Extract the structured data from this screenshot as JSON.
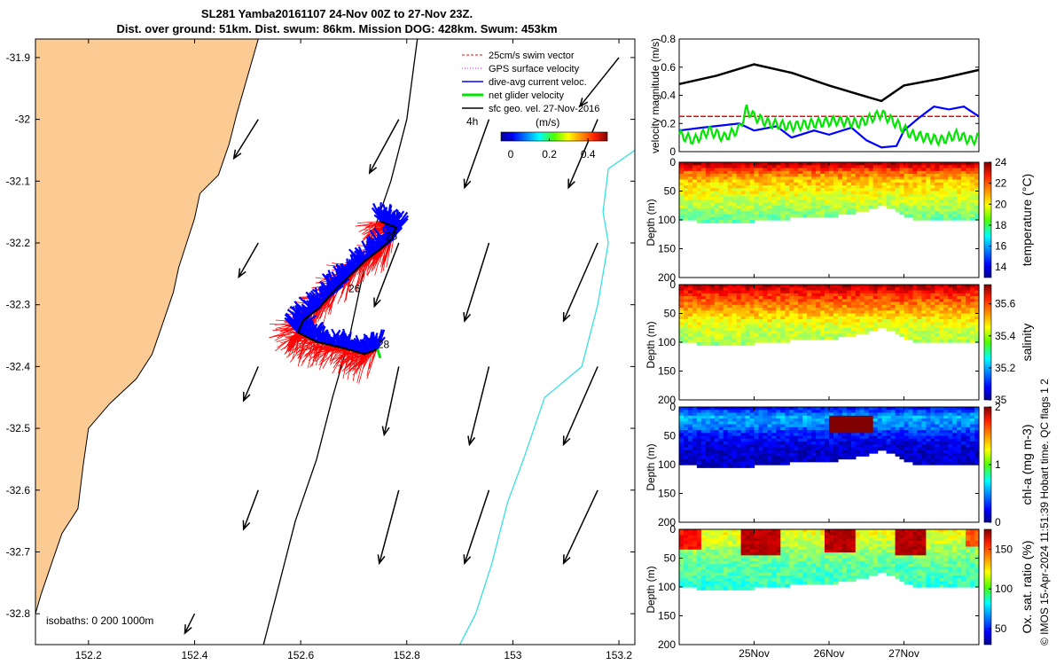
{
  "title_line1": "SL281 Yamba20161107 24-Nov 00Z to 27-Nov 23Z.",
  "title_line2": "Dist. over ground: 51km. Dist. swum: 86km. Mission DOG: 428km. Swum: 453km",
  "credit": "© IMOS 15-Apr-2024 11:51:39 Hobart time. QC flags 1  2",
  "colors": {
    "land": "#fbcb93",
    "swim_vector": "#ff0000",
    "gps_velocity": "#ff00ff",
    "dive_avg": "#0000ff",
    "net_velocity": "#00e600",
    "sfc_geo": "#000000",
    "isobath_shallow": "#000000",
    "isobath_1000": "#39e0e0"
  },
  "chart_data": [
    {
      "type": "map",
      "name": "glider-track-map",
      "xlim": [
        152.1,
        153.23
      ],
      "ylim": [
        -32.85,
        -31.87
      ],
      "xticks": [
        152.2,
        152.4,
        152.6,
        152.8,
        153,
        153.2
      ],
      "xtick_labels": [
        "152.2",
        "152.4",
        "152.6",
        "152.8",
        "153",
        "153.2"
      ],
      "yticks": [
        -31.9,
        -32,
        -32.1,
        -32.2,
        -32.3,
        -32.4,
        -32.5,
        -32.6,
        -32.7,
        -32.8
      ],
      "ytick_labels": [
        "-31.9",
        "-32",
        "-32.1",
        "-32.2",
        "-32.3",
        "-32.4",
        "-32.5",
        "-32.6",
        "-32.7",
        "-32.8"
      ],
      "legend": [
        {
          "label": "25cm/s swim vector",
          "color_key": "swim_vector",
          "style": "dashed"
        },
        {
          "label": "GPS surface velocity",
          "color_key": "gps_velocity",
          "style": "dotted"
        },
        {
          "label": "dive-avg current veloc.",
          "color_key": "dive_avg",
          "style": "solid"
        },
        {
          "label": "net glider velocity",
          "color_key": "net_velocity",
          "style": "thick"
        },
        {
          "label": "sfc geo. vel. 27-Nov-2016",
          "color_key": "sfc_geo",
          "style": "solid"
        }
      ],
      "scale_label": "4h",
      "colorbar_label": "(m/s)",
      "colorbar_ticks": [
        0,
        0.2,
        0.4
      ],
      "colorbar_range": [
        -0.05,
        0.5
      ],
      "isobaths_label": "isobaths: 0   200  1000m",
      "day_labels": [
        {
          "text": "25",
          "lon": 152.76,
          "lat": -32.195
        },
        {
          "text": "26",
          "lon": 152.69,
          "lat": -32.28
        },
        {
          "text": "28",
          "lon": 152.745,
          "lat": -32.37
        }
      ],
      "track": [
        [
          152.75,
          -32.165
        ],
        [
          152.78,
          -32.175
        ],
        [
          152.77,
          -32.195
        ],
        [
          152.75,
          -32.21
        ],
        [
          152.72,
          -32.23
        ],
        [
          152.69,
          -32.255
        ],
        [
          152.66,
          -32.28
        ],
        [
          152.635,
          -32.305
        ],
        [
          152.605,
          -32.325
        ],
        [
          152.595,
          -32.345
        ],
        [
          152.63,
          -32.36
        ],
        [
          152.68,
          -32.37
        ],
        [
          152.72,
          -32.38
        ],
        [
          152.745,
          -32.372
        ]
      ],
      "coastline": [
        [
          152.52,
          -31.87
        ],
        [
          152.5,
          -31.93
        ],
        [
          152.48,
          -31.99
        ],
        [
          152.465,
          -32.04
        ],
        [
          152.445,
          -32.09
        ],
        [
          152.41,
          -32.12
        ],
        [
          152.4,
          -32.16
        ],
        [
          152.385,
          -32.2
        ],
        [
          152.37,
          -32.24
        ],
        [
          152.36,
          -32.28
        ],
        [
          152.34,
          -32.33
        ],
        [
          152.32,
          -32.38
        ],
        [
          152.29,
          -32.42
        ],
        [
          152.24,
          -32.46
        ],
        [
          152.2,
          -32.5
        ],
        [
          152.19,
          -32.56
        ],
        [
          152.18,
          -32.63
        ],
        [
          152.15,
          -32.67
        ],
        [
          152.13,
          -32.72
        ],
        [
          152.11,
          -32.77
        ],
        [
          152.1,
          -32.8
        ]
      ],
      "geo_arrows": [
        {
          "lon": 152.52,
          "lat": -32.0,
          "u": -0.05,
          "v": -0.08
        },
        {
          "lon": 152.785,
          "lat": -32.0,
          "u": -0.06,
          "v": -0.11
        },
        {
          "lon": 152.955,
          "lat": -32.0,
          "u": -0.05,
          "v": -0.14
        },
        {
          "lon": 153.16,
          "lat": -32.0,
          "u": -0.06,
          "v": -0.14
        },
        {
          "lon": 153.2,
          "lat": -31.9,
          "u": -0.08,
          "v": -0.1
        },
        {
          "lon": 152.52,
          "lat": -32.2,
          "u": -0.04,
          "v": -0.07
        },
        {
          "lon": 152.785,
          "lat": -32.2,
          "u": -0.05,
          "v": -0.13
        },
        {
          "lon": 152.955,
          "lat": -32.2,
          "u": -0.05,
          "v": -0.16
        },
        {
          "lon": 153.16,
          "lat": -32.2,
          "u": -0.07,
          "v": -0.16
        },
        {
          "lon": 152.52,
          "lat": -32.4,
          "u": -0.03,
          "v": -0.07
        },
        {
          "lon": 152.785,
          "lat": -32.4,
          "u": -0.03,
          "v": -0.14
        },
        {
          "lon": 152.955,
          "lat": -32.4,
          "u": -0.04,
          "v": -0.16
        },
        {
          "lon": 153.16,
          "lat": -32.4,
          "u": -0.07,
          "v": -0.16
        },
        {
          "lon": 152.52,
          "lat": -32.6,
          "u": -0.03,
          "v": -0.08
        },
        {
          "lon": 152.785,
          "lat": -32.6,
          "u": -0.04,
          "v": -0.15
        },
        {
          "lon": 152.955,
          "lat": -32.6,
          "u": -0.05,
          "v": -0.15
        },
        {
          "lon": 153.16,
          "lat": -32.6,
          "u": -0.07,
          "v": -0.15
        },
        {
          "lon": 152.4,
          "lat": -32.8,
          "u": -0.02,
          "v": -0.04
        }
      ],
      "isobath_200": [
        [
          152.82,
          -31.87
        ],
        [
          152.8,
          -32.0
        ],
        [
          152.77,
          -32.1
        ],
        [
          152.73,
          -32.2
        ],
        [
          152.71,
          -32.28
        ],
        [
          152.69,
          -32.36
        ],
        [
          152.66,
          -32.45
        ],
        [
          152.63,
          -32.55
        ],
        [
          152.59,
          -32.65
        ],
        [
          152.56,
          -32.75
        ],
        [
          152.53,
          -32.85
        ]
      ],
      "isobath_1000": [
        [
          153.23,
          -32.05
        ],
        [
          153.18,
          -32.08
        ],
        [
          153.17,
          -32.15
        ],
        [
          153.18,
          -32.2
        ],
        [
          153.16,
          -32.3
        ],
        [
          153.13,
          -32.4
        ],
        [
          153.06,
          -32.45
        ],
        [
          153.02,
          -32.55
        ],
        [
          152.99,
          -32.62
        ],
        [
          152.96,
          -32.72
        ],
        [
          152.93,
          -32.8
        ],
        [
          152.9,
          -32.85
        ]
      ]
    },
    {
      "type": "line",
      "name": "velocity-magnitude",
      "ylabel": "velocity magnitude (m/s)",
      "xlim": [
        0,
        4
      ],
      "ylim": [
        0,
        0.8
      ],
      "yticks": [
        0,
        0.2,
        0.4,
        0.6,
        0.8
      ],
      "yticklabels": [
        "0",
        "0.2",
        "0.4",
        "0.6",
        "0.8"
      ],
      "series": [
        {
          "name": "sfc geo. speed",
          "color_key": "sfc_geo",
          "x": [
            0,
            0.5,
            1.0,
            1.5,
            2.0,
            2.5,
            2.7,
            3.0,
            3.5,
            4.0
          ],
          "values": [
            0.48,
            0.54,
            0.62,
            0.56,
            0.47,
            0.39,
            0.36,
            0.47,
            0.52,
            0.58
          ]
        },
        {
          "name": "25cm/s swim vector",
          "color_key": "swim_vector",
          "x": [
            0,
            4
          ],
          "values": [
            0.25,
            0.25
          ]
        },
        {
          "name": "dive-avg current",
          "color_key": "dive_avg",
          "x": [
            0,
            0.3,
            0.8,
            1.0,
            1.3,
            1.5,
            1.8,
            2.0,
            2.3,
            2.5,
            2.7,
            2.9,
            3.0,
            3.2,
            3.4,
            3.6,
            3.8,
            4.0
          ],
          "values": [
            0.15,
            0.17,
            0.2,
            0.15,
            0.18,
            0.1,
            0.15,
            0.12,
            0.17,
            0.08,
            0.03,
            0.04,
            0.15,
            0.24,
            0.32,
            0.3,
            0.32,
            0.25
          ]
        },
        {
          "name": "net glider velocity",
          "color_key": "net_velocity",
          "x": [
            0,
            0.2,
            0.4,
            0.6,
            0.8,
            0.9,
            1.0,
            1.2,
            1.5,
            1.8,
            2.1,
            2.4,
            2.7,
            2.9,
            3.1,
            3.3,
            3.5,
            3.7,
            3.9,
            4.0
          ],
          "values": [
            0.12,
            0.08,
            0.15,
            0.1,
            0.16,
            0.3,
            0.25,
            0.2,
            0.18,
            0.2,
            0.22,
            0.2,
            0.27,
            0.2,
            0.12,
            0.1,
            0.08,
            0.12,
            0.08,
            0.1
          ]
        }
      ]
    },
    {
      "type": "heatmap",
      "name": "temperature-section",
      "ylabel": "Depth (m)",
      "clabel": "temperature (°C)",
      "yticks": [
        0,
        50,
        100,
        150,
        200
      ],
      "ylim": [
        0,
        200
      ],
      "cticks": [
        14,
        16,
        18,
        20,
        22,
        24
      ],
      "crange": [
        13,
        24
      ],
      "x_days": [
        0,
        0.25,
        0.5,
        0.75,
        1.0,
        1.25,
        1.5,
        1.75,
        2.0,
        2.25,
        2.5,
        2.75,
        3.0,
        3.25,
        3.5,
        3.75,
        4.0
      ],
      "bottom_depth": [
        95,
        100,
        105,
        105,
        100,
        98,
        95,
        95,
        92,
        88,
        82,
        72,
        90,
        100,
        100,
        100,
        98
      ],
      "depth_levels": [
        0,
        15,
        30,
        45,
        60,
        75,
        90,
        105
      ],
      "profile": [
        23.5,
        21.5,
        20.5,
        20.0,
        19.5,
        19.0,
        18.5,
        18.0
      ],
      "xticks": [
        1,
        2,
        3
      ],
      "xticklabels": [
        "25Nov",
        "26Nov",
        "27Nov"
      ]
    },
    {
      "type": "heatmap",
      "name": "salinity-section",
      "ylabel": "Depth (m)",
      "clabel": "salinity",
      "yticks": [
        0,
        50,
        100,
        150,
        200
      ],
      "ylim": [
        0,
        200
      ],
      "cticks": [
        35,
        35.2,
        35.4,
        35.6
      ],
      "crange": [
        35.0,
        35.72
      ],
      "x_days": [
        0,
        0.25,
        0.5,
        0.75,
        1.0,
        1.25,
        1.5,
        1.75,
        2.0,
        2.25,
        2.5,
        2.75,
        3.0,
        3.25,
        3.5,
        3.75,
        4.0
      ],
      "bottom_depth": [
        95,
        100,
        105,
        105,
        100,
        98,
        95,
        95,
        92,
        88,
        82,
        72,
        90,
        100,
        100,
        100,
        98
      ],
      "depth_levels": [
        0,
        15,
        30,
        45,
        60,
        75,
        90,
        105
      ],
      "profile": [
        35.68,
        35.6,
        35.55,
        35.5,
        35.45,
        35.42,
        35.4,
        35.38
      ],
      "xticks": [
        1,
        2,
        3
      ],
      "xticklabels": [
        "25Nov",
        "26Nov",
        "27Nov"
      ]
    },
    {
      "type": "heatmap",
      "name": "chlorophyll-section",
      "ylabel": "Depth (m)",
      "clabel": "chl-a (mg m-3)",
      "yticks": [
        0,
        50,
        100,
        150,
        200
      ],
      "ylim": [
        0,
        200
      ],
      "cticks": [
        0,
        1,
        2
      ],
      "crange": [
        0,
        2
      ],
      "x_days": [
        0,
        0.25,
        0.5,
        0.75,
        1.0,
        1.25,
        1.5,
        1.75,
        2.0,
        2.25,
        2.5,
        2.75,
        3.0,
        3.25,
        3.5,
        3.75,
        4.0
      ],
      "bottom_depth": [
        95,
        100,
        105,
        105,
        100,
        98,
        95,
        95,
        92,
        88,
        82,
        72,
        90,
        100,
        100,
        100,
        98
      ],
      "depth_levels": [
        0,
        15,
        30,
        45,
        60,
        75,
        90,
        105
      ],
      "profile": [
        0.3,
        0.6,
        0.5,
        0.3,
        0.2,
        0.15,
        0.15,
        0.15
      ],
      "patch": {
        "x0": 2.0,
        "x1": 2.6,
        "d0": 15,
        "d1": 40,
        "value": 2.0
      },
      "xticks": [
        1,
        2,
        3
      ],
      "xticklabels": [
        "25Nov",
        "26Nov",
        "27Nov"
      ]
    },
    {
      "type": "heatmap",
      "name": "oxygen-section",
      "ylabel": "Depth (m)",
      "clabel": "Ox. sat. ratio (%)",
      "yticks": [
        0,
        50,
        100,
        150,
        200
      ],
      "ylim": [
        0,
        200
      ],
      "cticks": [
        50,
        100,
        150
      ],
      "crange": [
        30,
        175
      ],
      "x_days": [
        0,
        0.25,
        0.5,
        0.75,
        1.0,
        1.25,
        1.5,
        1.75,
        2.0,
        2.25,
        2.5,
        2.75,
        3.0,
        3.25,
        3.5,
        3.75,
        4.0
      ],
      "bottom_depth": [
        95,
        100,
        105,
        105,
        100,
        98,
        95,
        95,
        92,
        88,
        82,
        72,
        90,
        100,
        100,
        100,
        98
      ],
      "depth_levels": [
        0,
        15,
        30,
        45,
        60,
        75,
        90,
        105
      ],
      "profile": [
        120,
        115,
        108,
        102,
        98,
        95,
        92,
        90
      ],
      "blobs": [
        {
          "x0": 0.0,
          "x1": 0.3,
          "d1": 30,
          "value": 160
        },
        {
          "x0": 0.8,
          "x1": 1.4,
          "d1": 40,
          "value": 172
        },
        {
          "x0": 1.9,
          "x1": 2.4,
          "d1": 35,
          "value": 172
        },
        {
          "x0": 2.85,
          "x1": 3.35,
          "d1": 40,
          "value": 172
        },
        {
          "x0": 3.8,
          "x1": 4.0,
          "d1": 25,
          "value": 150
        }
      ],
      "xticks": [
        1,
        2,
        3
      ],
      "xticklabels": [
        "25Nov",
        "26Nov",
        "27Nov"
      ]
    }
  ]
}
